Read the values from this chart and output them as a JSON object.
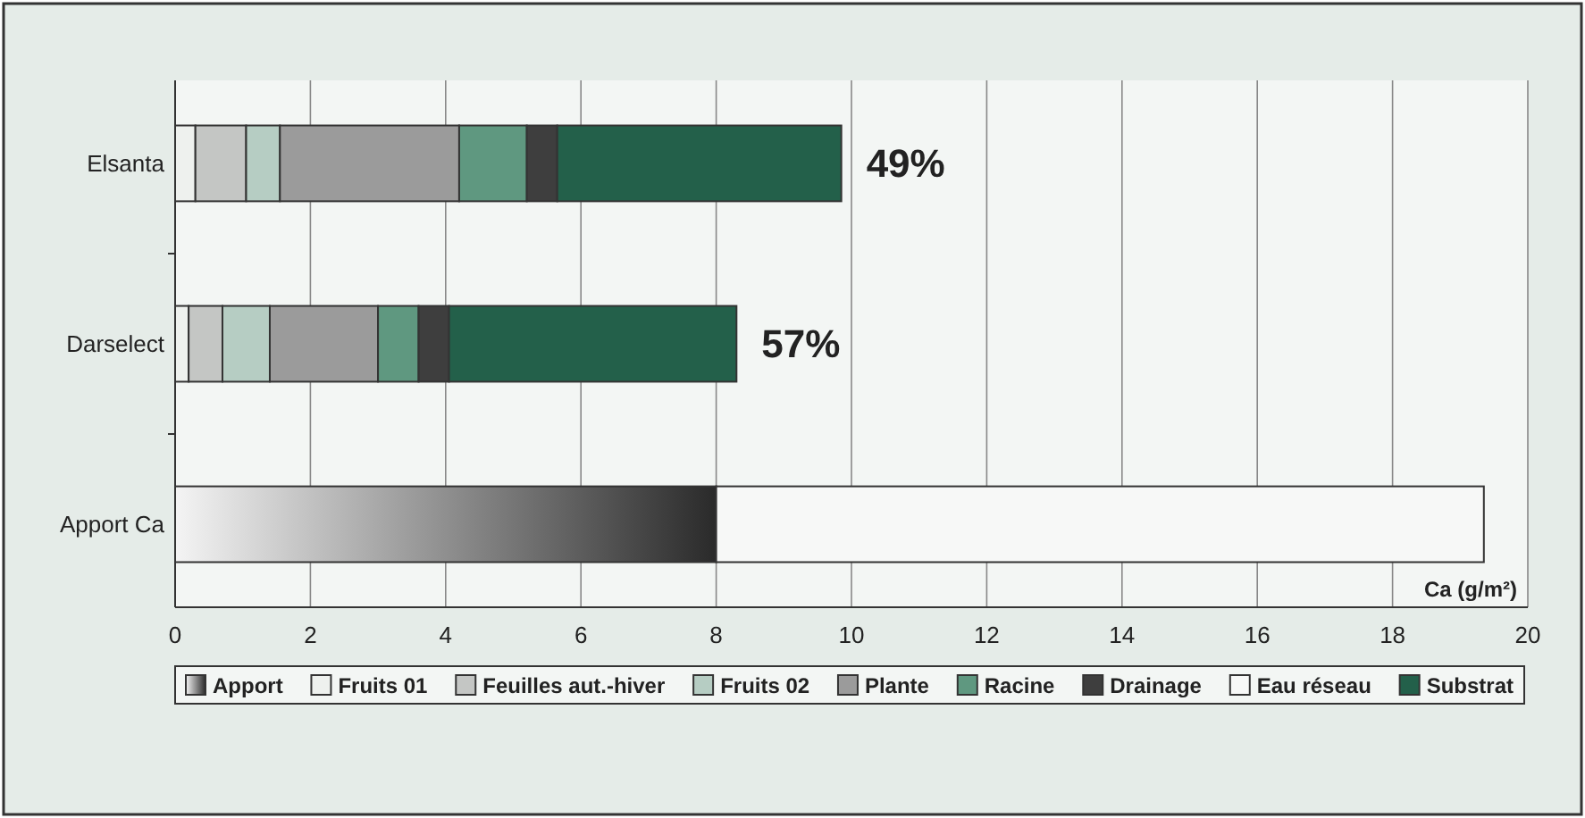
{
  "chart_data": {
    "type": "bar",
    "orientation": "horizontal",
    "stacked": true,
    "categories": [
      "Elsanta",
      "Darselect",
      "Apport Ca"
    ],
    "series": [
      {
        "name": "Apport",
        "color": "#2a2a2a",
        "values": [
          null,
          null,
          8.0
        ]
      },
      {
        "name": "Fruits 01",
        "color": "#eef1ee",
        "values": [
          0.3,
          0.2,
          null
        ]
      },
      {
        "name": "Feuilles aut.-hiver",
        "color": "#c4c6c4",
        "values": [
          0.75,
          0.5,
          null
        ]
      },
      {
        "name": "Fruits 02",
        "color": "#b6cdc3",
        "values": [
          0.5,
          0.7,
          null
        ]
      },
      {
        "name": "Plante",
        "color": "#9b9b9b",
        "values": [
          2.65,
          1.6,
          null
        ]
      },
      {
        "name": "Racine",
        "color": "#5f9880",
        "values": [
          1.0,
          0.6,
          null
        ]
      },
      {
        "name": "Drainage",
        "color": "#3e3e3e",
        "values": [
          0.45,
          0.45,
          null
        ]
      },
      {
        "name": "Eau réseau",
        "color": "#f7f8f7",
        "values": [
          null,
          null,
          11.35
        ]
      },
      {
        "name": "Substrat",
        "color": "#23604a",
        "values": [
          4.2,
          4.25,
          null
        ]
      }
    ],
    "xlabel": "Ca (g/m²)",
    "xlim": [
      0,
      20
    ],
    "xticks": [
      0,
      2,
      4,
      6,
      8,
      10,
      12,
      14,
      16,
      18,
      20
    ],
    "grid": "x",
    "legend": "bottom",
    "annotations": [
      {
        "text": "49%",
        "x": 9.85,
        "y": "Elsanta"
      },
      {
        "text": "57%",
        "x": 8.3,
        "y": "Darselect"
      }
    ]
  }
}
